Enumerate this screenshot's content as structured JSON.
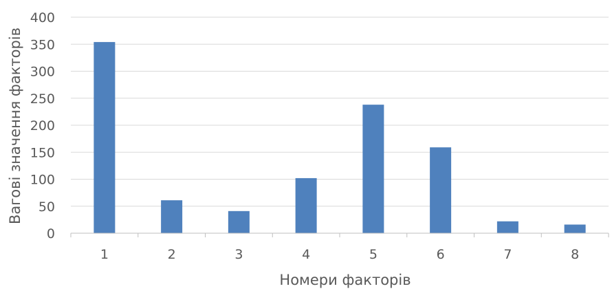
{
  "chart_data": {
    "type": "bar",
    "categories": [
      "1",
      "2",
      "3",
      "4",
      "5",
      "6",
      "7",
      "8"
    ],
    "values": [
      354,
      61,
      41,
      102,
      238,
      159,
      22,
      16
    ],
    "title": "",
    "xlabel": "Номери факторів",
    "ylabel": "Вагові значення факторів",
    "ylim": [
      0,
      400
    ],
    "yticks": [
      0,
      50,
      100,
      150,
      200,
      250,
      300,
      350,
      400
    ],
    "grid": true,
    "legend": "none",
    "bar_color": "#4f81bd"
  }
}
